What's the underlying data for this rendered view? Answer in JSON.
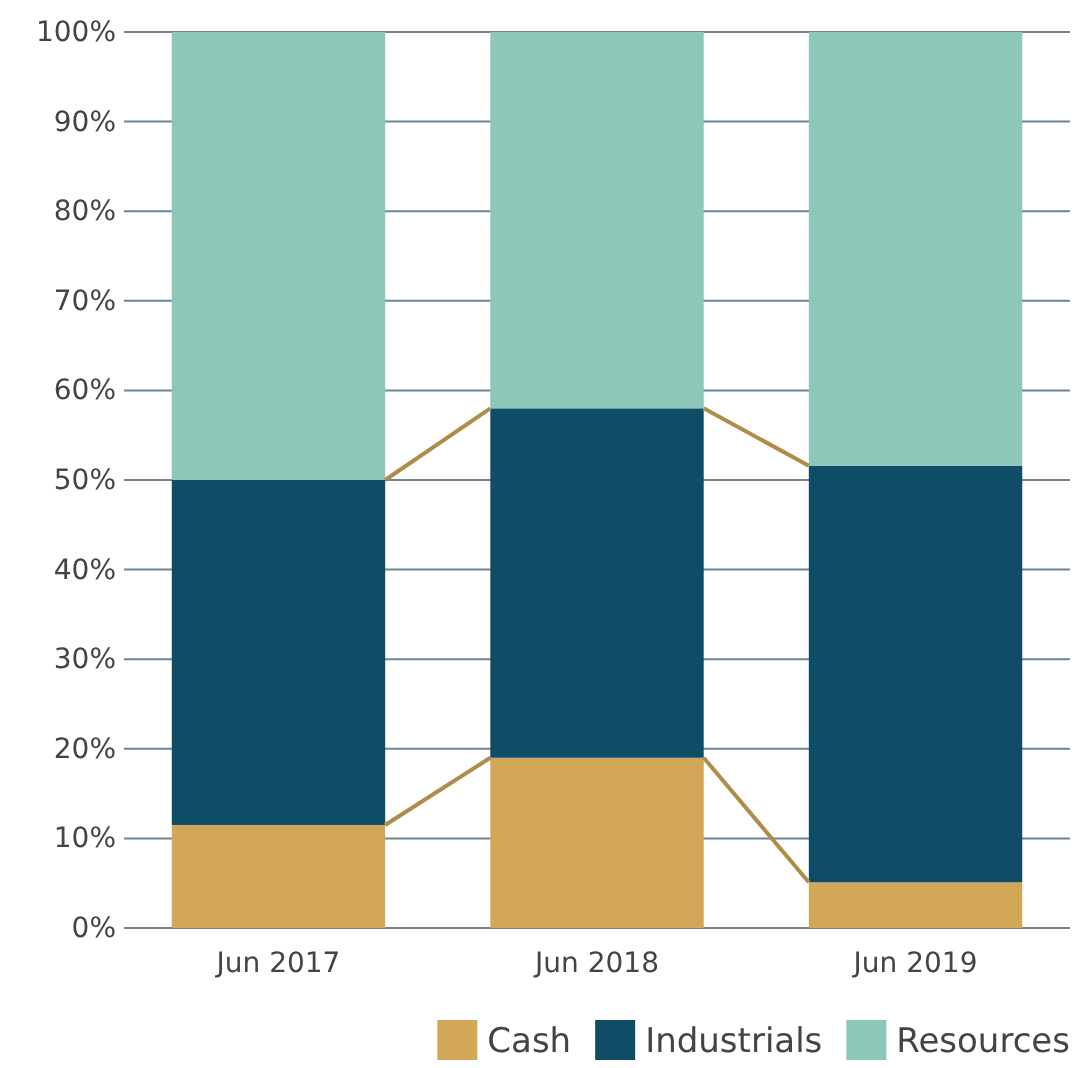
{
  "chart_data": {
    "type": "bar",
    "stacked": true,
    "categories": [
      "Jun 2017",
      "Jun 2018",
      "Jun 2019"
    ],
    "series": [
      {
        "name": "Cash",
        "color": "#d2a757",
        "values": [
          11.5,
          19,
          5.1
        ]
      },
      {
        "name": "Industrials",
        "color": "#0f4d66",
        "values": [
          38.5,
          39,
          46.5
        ]
      },
      {
        "name": "Resources",
        "color": "#8cc7ba",
        "values": [
          50,
          42,
          48.4
        ]
      }
    ],
    "ylim": [
      0,
      100
    ],
    "yticks": [
      {
        "value": 0,
        "label": "0%"
      },
      {
        "value": 10,
        "label": "10%"
      },
      {
        "value": 20,
        "label": "20%"
      },
      {
        "value": 30,
        "label": "30%"
      },
      {
        "value": 40,
        "label": "40%"
      },
      {
        "value": 50,
        "label": "50%"
      },
      {
        "value": 60,
        "label": "60%"
      },
      {
        "value": 70,
        "label": "70%"
      },
      {
        "value": 80,
        "label": "80%"
      },
      {
        "value": 90,
        "label": "90%"
      },
      {
        "value": 100,
        "label": "100%"
      }
    ],
    "grid": "y",
    "legend": "bottom right"
  }
}
